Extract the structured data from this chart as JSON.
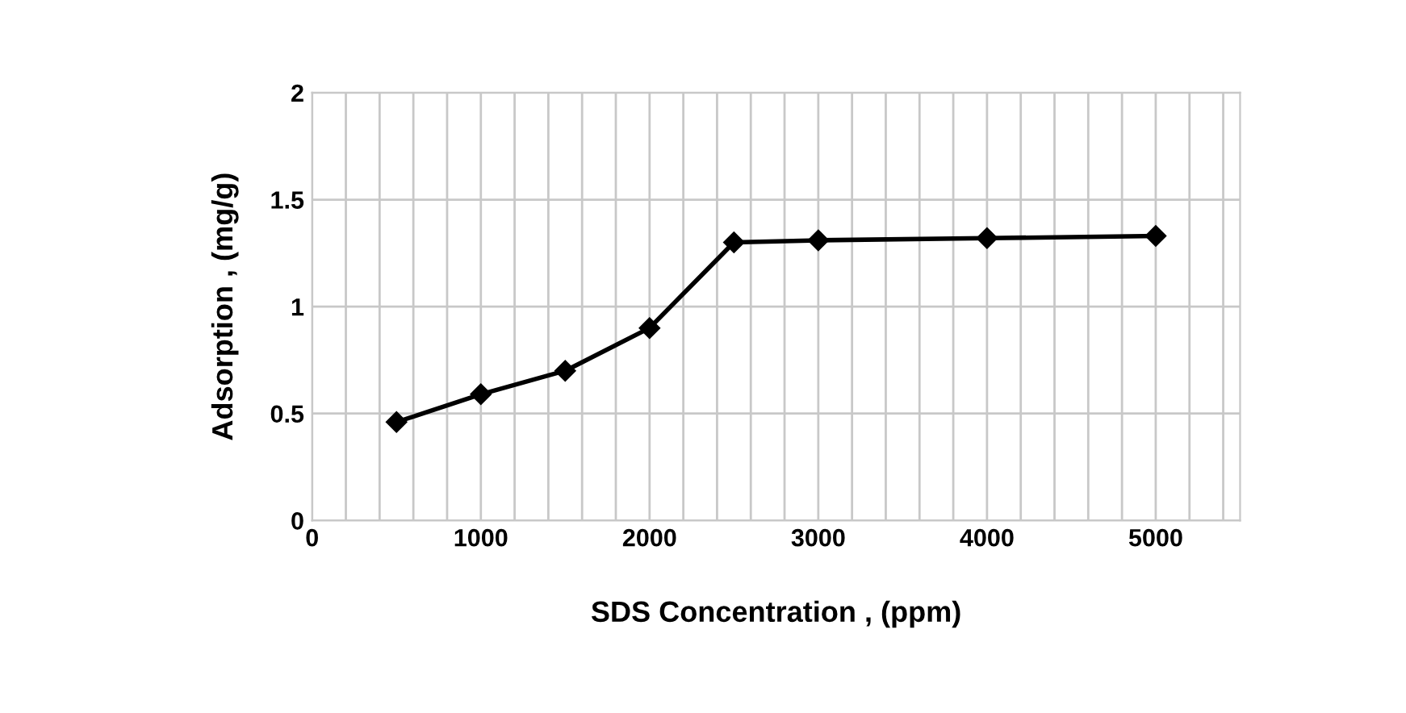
{
  "chart_data": {
    "type": "line",
    "xlabel": "SDS Concentration , (ppm)",
    "ylabel": "Adsorption , (mg/g)",
    "x": [
      500,
      1000,
      1500,
      2000,
      2500,
      3000,
      4000,
      5000
    ],
    "series": [
      {
        "color": "#000000",
        "values": [
          0.46,
          0.59,
          0.7,
          0.9,
          1.3,
          1.31,
          1.32,
          1.33
        ]
      }
    ],
    "xlim": [
      0,
      5500
    ],
    "ylim": [
      0,
      2
    ],
    "xticks": [
      0,
      {
        "value": 200,
        "label": null
      },
      {
        "value": 400,
        "label": null
      },
      {
        "value": 600,
        "label": null
      },
      {
        "value": 800,
        "label": null
      },
      1000,
      {
        "value": 1200,
        "label": null
      },
      {
        "value": 1400,
        "label": null
      },
      {
        "value": 1600,
        "label": null
      },
      {
        "value": 1800,
        "label": null
      },
      2000,
      {
        "value": 2200,
        "label": null
      },
      {
        "value": 2400,
        "label": null
      },
      {
        "value": 2600,
        "label": null
      },
      {
        "value": 2800,
        "label": null
      },
      3000,
      {
        "value": 3200,
        "label": null
      },
      {
        "value": 3400,
        "label": null
      },
      {
        "value": 3600,
        "label": null
      },
      {
        "value": 3800,
        "label": null
      },
      4000,
      {
        "value": 4200,
        "label": null
      },
      {
        "value": 4400,
        "label": null
      },
      {
        "value": 4600,
        "label": null
      },
      {
        "value": 4800,
        "label": null
      },
      5000,
      {
        "value": 5200,
        "label": null
      },
      {
        "value": 5400,
        "label": null
      }
    ],
    "yticks": [
      0,
      0.5,
      1,
      1.5,
      2
    ],
    "grid": true,
    "marker": "diamond",
    "line_style": "solid",
    "legend": false
  }
}
